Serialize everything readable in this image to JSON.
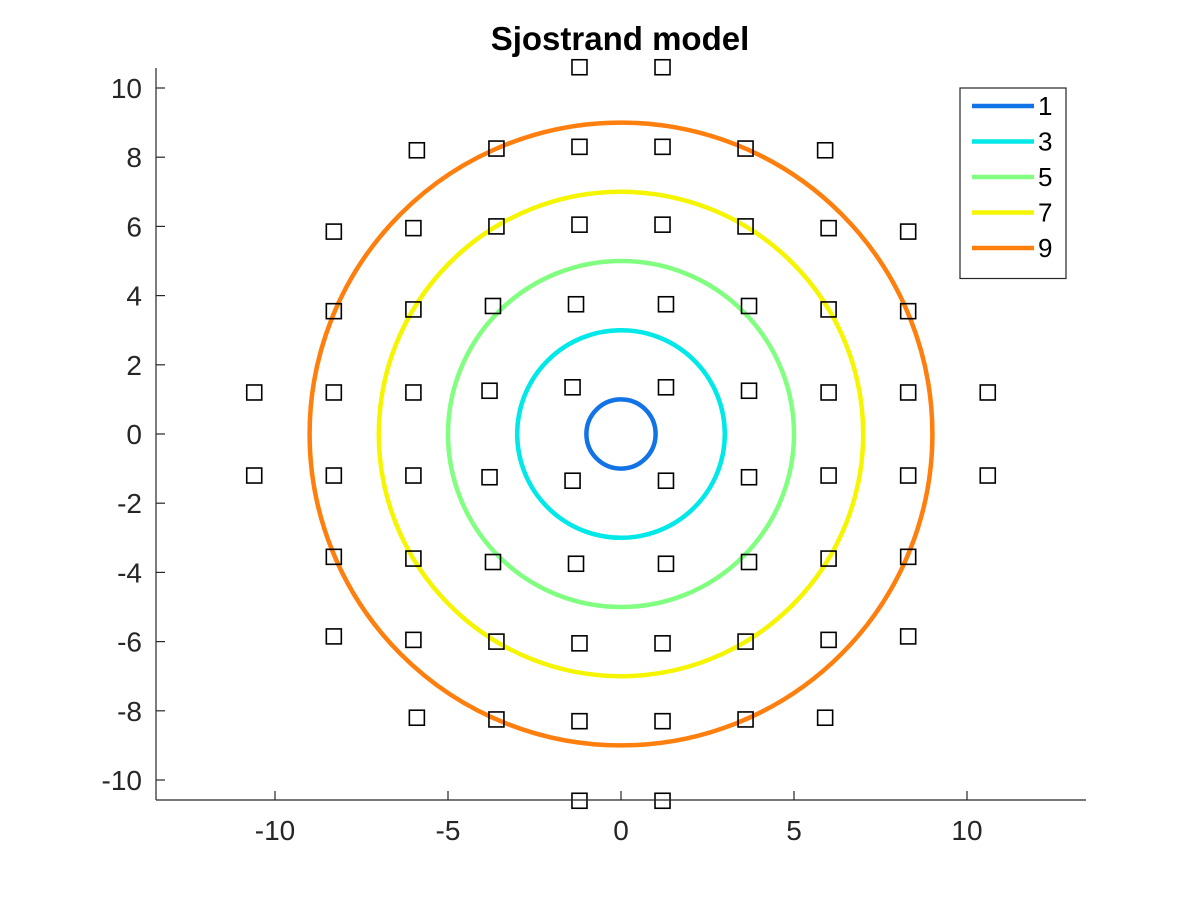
{
  "chart_data": {
    "type": "scatter",
    "title": "Sjostrand model",
    "xlabel": "",
    "ylabel": "",
    "xlim": [
      -13.4,
      13.4
    ],
    "ylim": [
      -10.6,
      10.6
    ],
    "xticks": [
      -10,
      -5,
      0,
      5,
      10
    ],
    "yticks": [
      -10,
      -8,
      -6,
      -4,
      -2,
      0,
      2,
      4,
      6,
      8,
      10
    ],
    "grid": false,
    "legend_location": "top-right",
    "circles": [
      {
        "name": "1",
        "radius": 1,
        "color": "#1273e6"
      },
      {
        "name": "3",
        "radius": 3,
        "color": "#00e8e8"
      },
      {
        "name": "5",
        "radius": 5,
        "color": "#80ff80"
      },
      {
        "name": "7",
        "radius": 7,
        "color": "#f5f500"
      },
      {
        "name": "9",
        "radius": 9,
        "color": "#ff7f0e"
      }
    ],
    "markers": {
      "shape": "square",
      "color": "#000000",
      "points": [
        [
          -1.2,
          10.6
        ],
        [
          1.2,
          10.6
        ],
        [
          -5.9,
          8.2
        ],
        [
          -3.6,
          8.25
        ],
        [
          -1.2,
          8.3
        ],
        [
          1.2,
          8.3
        ],
        [
          3.6,
          8.25
        ],
        [
          5.9,
          8.2
        ],
        [
          -8.3,
          5.85
        ],
        [
          -6.0,
          5.95
        ],
        [
          -3.6,
          6.0
        ],
        [
          -1.2,
          6.05
        ],
        [
          1.2,
          6.05
        ],
        [
          3.6,
          6.0
        ],
        [
          6.0,
          5.95
        ],
        [
          8.3,
          5.85
        ],
        [
          -8.3,
          3.55
        ],
        [
          -6.0,
          3.6
        ],
        [
          -3.7,
          3.7
        ],
        [
          -1.3,
          3.75
        ],
        [
          1.3,
          3.75
        ],
        [
          3.7,
          3.7
        ],
        [
          6.0,
          3.6
        ],
        [
          8.3,
          3.55
        ],
        [
          -10.6,
          1.2
        ],
        [
          -8.3,
          1.2
        ],
        [
          -6.0,
          1.2
        ],
        [
          -3.8,
          1.25
        ],
        [
          -1.4,
          1.35
        ],
        [
          1.3,
          1.35
        ],
        [
          3.7,
          1.25
        ],
        [
          6.0,
          1.2
        ],
        [
          8.3,
          1.2
        ],
        [
          10.6,
          1.2
        ],
        [
          -10.6,
          -1.2
        ],
        [
          -8.3,
          -1.2
        ],
        [
          -6.0,
          -1.2
        ],
        [
          -3.8,
          -1.25
        ],
        [
          -1.4,
          -1.35
        ],
        [
          1.3,
          -1.35
        ],
        [
          3.7,
          -1.25
        ],
        [
          6.0,
          -1.2
        ],
        [
          8.3,
          -1.2
        ],
        [
          10.6,
          -1.2
        ],
        [
          -8.3,
          -3.55
        ],
        [
          -6.0,
          -3.6
        ],
        [
          -3.7,
          -3.7
        ],
        [
          -1.3,
          -3.75
        ],
        [
          1.3,
          -3.75
        ],
        [
          3.7,
          -3.7
        ],
        [
          6.0,
          -3.6
        ],
        [
          8.3,
          -3.55
        ],
        [
          -8.3,
          -5.85
        ],
        [
          -6.0,
          -5.95
        ],
        [
          -3.6,
          -6.0
        ],
        [
          -1.2,
          -6.05
        ],
        [
          1.2,
          -6.05
        ],
        [
          3.6,
          -6.0
        ],
        [
          6.0,
          -5.95
        ],
        [
          8.3,
          -5.85
        ],
        [
          -5.9,
          -8.2
        ],
        [
          -3.6,
          -8.25
        ],
        [
          -1.2,
          -8.3
        ],
        [
          1.2,
          -8.3
        ],
        [
          3.6,
          -8.25
        ],
        [
          5.9,
          -8.2
        ],
        [
          -1.2,
          -10.6
        ],
        [
          1.2,
          -10.6
        ]
      ]
    }
  }
}
